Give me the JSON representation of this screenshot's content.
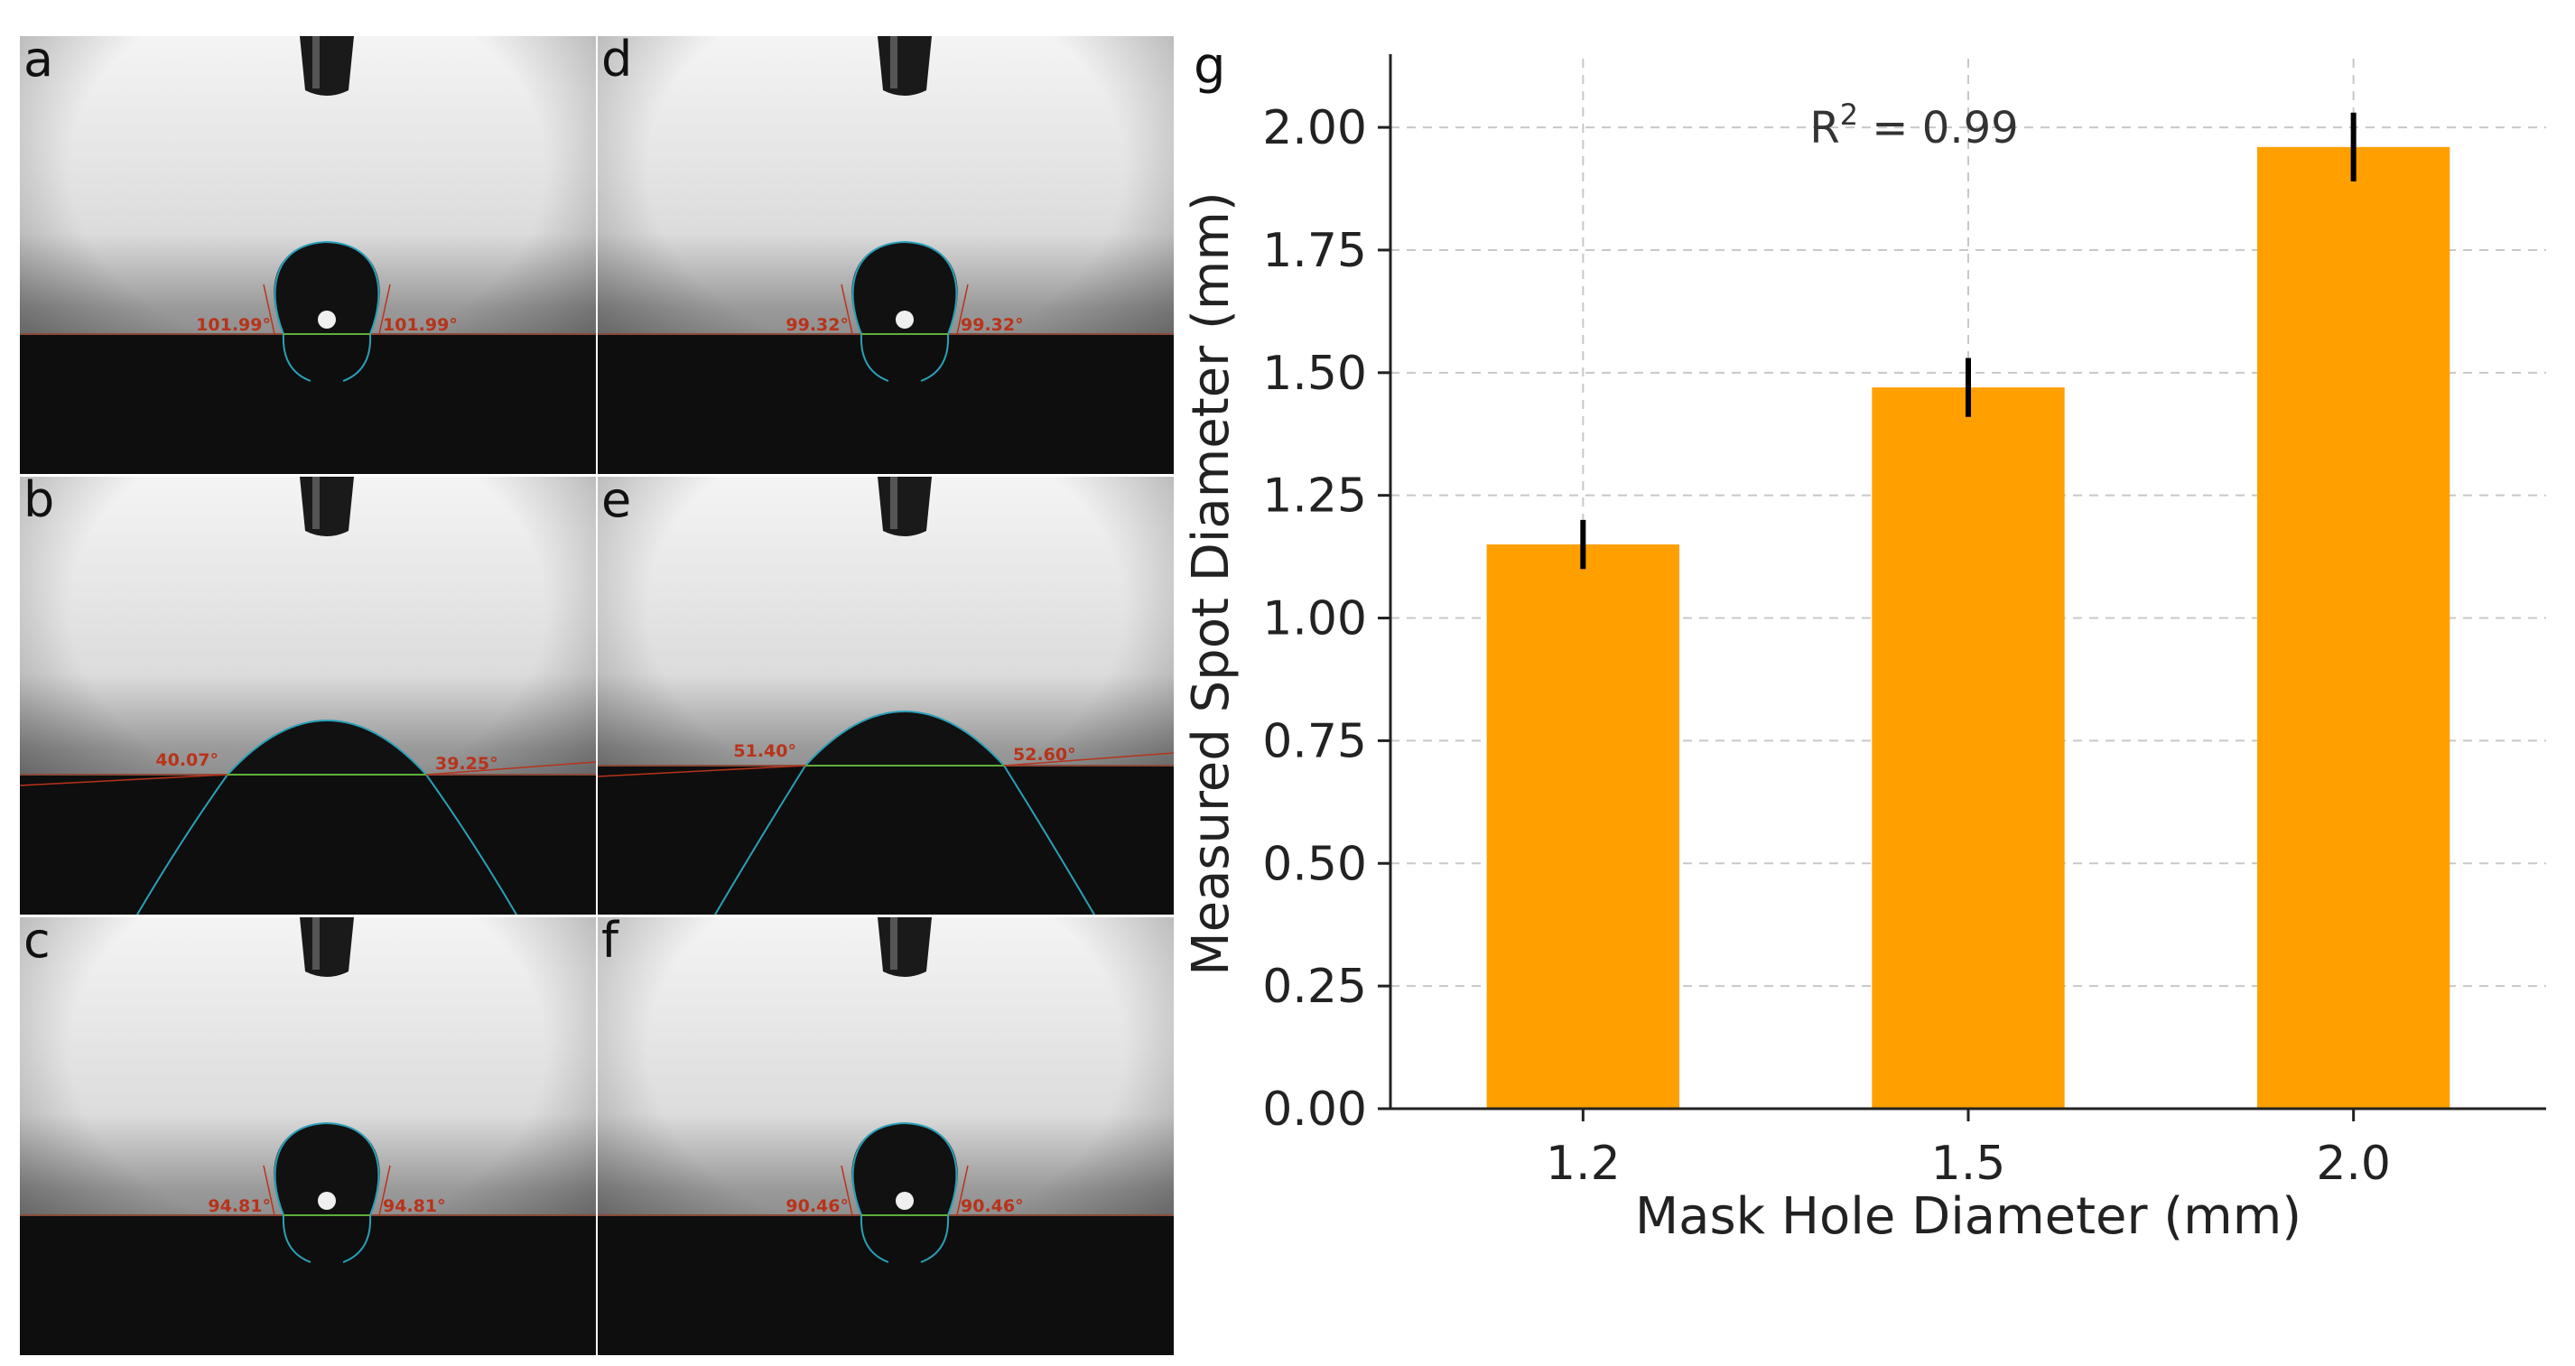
{
  "panels": [
    {
      "label": "a",
      "left": "101.99°",
      "right": "101.99°",
      "type": "high"
    },
    {
      "label": "b",
      "left": "40.07°",
      "right": "39.25°",
      "type": "low"
    },
    {
      "label": "c",
      "left": "94.81°",
      "right": "94.81°",
      "type": "high"
    },
    {
      "label": "d",
      "left": "99.32°",
      "right": "99.32°",
      "type": "high"
    },
    {
      "label": "e",
      "left": "51.40°",
      "right": "52.60°",
      "type": "low"
    },
    {
      "label": "f",
      "left": "90.46°",
      "right": "90.46°",
      "type": "high"
    }
  ],
  "chart_data": {
    "type": "bar",
    "panel_label": "g",
    "categories": [
      "1.2",
      "1.5",
      "2.0"
    ],
    "values": [
      1.15,
      1.47,
      1.96
    ],
    "errors": [
      0.05,
      0.06,
      0.07
    ],
    "xlabel": "Mask Hole Diameter (mm)",
    "ylabel": "Measured Spot Diameter (mm)",
    "ylim": [
      0,
      2.14
    ],
    "yticks": [
      "0.00",
      "0.25",
      "0.50",
      "0.75",
      "1.00",
      "1.25",
      "1.50",
      "1.75",
      "2.00"
    ],
    "annotation": {
      "r2_prefix": "R",
      "r2_sup": "2",
      "r2_suffix": " = 0.99"
    },
    "grid": true,
    "bar_color": "#ffa000",
    "error_color": "#000000"
  }
}
